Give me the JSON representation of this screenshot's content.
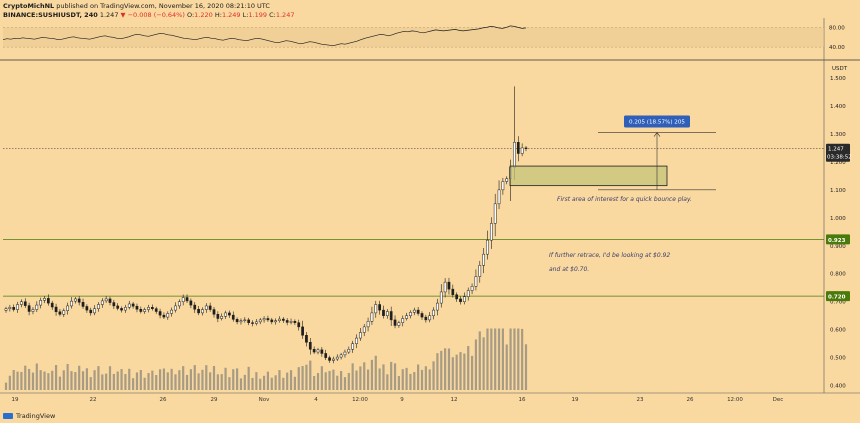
{
  "header": {
    "author": "CryptoMichNL",
    "published": "published on TradingView.com, November 16, 2020 08:21:10 UTC",
    "symbol": "BINANCE:SUSHIUSDT, 240",
    "price": "1.247",
    "change": "▼ −0.008 (−0.64%)",
    "o_label": "O:",
    "o_value": "1.220",
    "h_label": "H:",
    "h_value": "1.249",
    "l_label": "L:",
    "l_value": "1.199",
    "c_label": "C:",
    "c_value": "1.247"
  },
  "footer": {
    "brand": "TradingView"
  },
  "colors": {
    "background": "#fad9a1",
    "candle": "#1f1f1f",
    "volume": "#8c857a",
    "support": "#4a7a0a",
    "current_price": "#2a2a2a",
    "measure": "#2f5fb8",
    "zone_fill": "#c4c47a"
  },
  "chart_data": [
    {
      "type": "line",
      "name": "RSI pane",
      "y_ticks": [
        "80.00",
        "40.00"
      ],
      "ylim": [
        20,
        95
      ],
      "band": [
        40,
        80
      ],
      "values": [
        55,
        57,
        56,
        58,
        57,
        59,
        58,
        57,
        56,
        58,
        60,
        59,
        58,
        57,
        55,
        56,
        58,
        60,
        61,
        59,
        58,
        57,
        56,
        58,
        60,
        62,
        63,
        61,
        60,
        58,
        57,
        59,
        61,
        64,
        66,
        65,
        63,
        62,
        64,
        66,
        68,
        67,
        65,
        64,
        62,
        60,
        58,
        57,
        56,
        55,
        57,
        59,
        60,
        58,
        57,
        55,
        54,
        56,
        58,
        57,
        55,
        54,
        53,
        55,
        57,
        58,
        56,
        54,
        52,
        50,
        49,
        51,
        53,
        52,
        50,
        48,
        47,
        49,
        51,
        50,
        48,
        46,
        45,
        44,
        43,
        45,
        47,
        46,
        48,
        50,
        52,
        55,
        58,
        60,
        62,
        64,
        66,
        65,
        63,
        65,
        68,
        70,
        72,
        71,
        73,
        72,
        70,
        69,
        71,
        73,
        75,
        74,
        73,
        74,
        75,
        76,
        74,
        73,
        74,
        75,
        76,
        77,
        79,
        80,
        82,
        81,
        79,
        78,
        80,
        83,
        82,
        80,
        78,
        79
      ]
    },
    {
      "type": "candlestick",
      "name": "SUSHIUSDT 240",
      "y_unit": "USDT",
      "ylim": [
        0.37,
        1.55
      ],
      "y_ticks": [
        "1.500",
        "1.400",
        "1.300",
        "1.200",
        "1.100",
        "1.000",
        "0.900",
        "0.800",
        "0.700",
        "0.600",
        "0.500",
        "0.400"
      ],
      "x_ticks": [
        "19",
        "22",
        "26",
        "29",
        "Nov",
        "4",
        "12:00",
        "9",
        "12",
        "16",
        "19",
        "23",
        "26",
        "12:00",
        "Dec"
      ],
      "closes": [
        0.675,
        0.68,
        0.672,
        0.69,
        0.7,
        0.686,
        0.665,
        0.672,
        0.688,
        0.705,
        0.712,
        0.695,
        0.681,
        0.664,
        0.655,
        0.668,
        0.685,
        0.702,
        0.71,
        0.698,
        0.683,
        0.67,
        0.66,
        0.675,
        0.69,
        0.703,
        0.71,
        0.697,
        0.685,
        0.676,
        0.67,
        0.68,
        0.692,
        0.684,
        0.673,
        0.665,
        0.672,
        0.68,
        0.675,
        0.665,
        0.652,
        0.645,
        0.658,
        0.67,
        0.685,
        0.7,
        0.715,
        0.703,
        0.688,
        0.673,
        0.66,
        0.672,
        0.685,
        0.672,
        0.655,
        0.64,
        0.648,
        0.66,
        0.652,
        0.637,
        0.628,
        0.632,
        0.635,
        0.625,
        0.622,
        0.628,
        0.635,
        0.64,
        0.635,
        0.628,
        0.632,
        0.638,
        0.633,
        0.626,
        0.63,
        0.625,
        0.61,
        0.58,
        0.555,
        0.53,
        0.52,
        0.528,
        0.515,
        0.5,
        0.49,
        0.495,
        0.502,
        0.51,
        0.52,
        0.53,
        0.55,
        0.57,
        0.59,
        0.61,
        0.63,
        0.66,
        0.69,
        0.67,
        0.65,
        0.665,
        0.635,
        0.615,
        0.625,
        0.64,
        0.65,
        0.662,
        0.67,
        0.658,
        0.645,
        0.635,
        0.65,
        0.67,
        0.695,
        0.735,
        0.77,
        0.745,
        0.725,
        0.71,
        0.7,
        0.718,
        0.74,
        0.755,
        0.79,
        0.83,
        0.87,
        0.92,
        0.98,
        1.05,
        1.1,
        1.13,
        1.14,
        1.18,
        1.27,
        1.23,
        1.25,
        1.247
      ],
      "levels": [
        {
          "value": 0.923,
          "label": "0.923"
        },
        {
          "value": 0.72,
          "label": "0.720"
        }
      ],
      "current_price": {
        "value": 1.247,
        "label": "1.247",
        "countdown": "03:38:52"
      },
      "zone": {
        "from": 1.115,
        "to": 1.185
      },
      "measure": {
        "from": 1.1,
        "to": 1.305,
        "label": "0.205 (18.57%) 205"
      },
      "annotations": [
        "First area of interest for a quick bounce play.",
        "If further retrace, I'd be looking at $0.92",
        "and at $0.70."
      ]
    }
  ]
}
